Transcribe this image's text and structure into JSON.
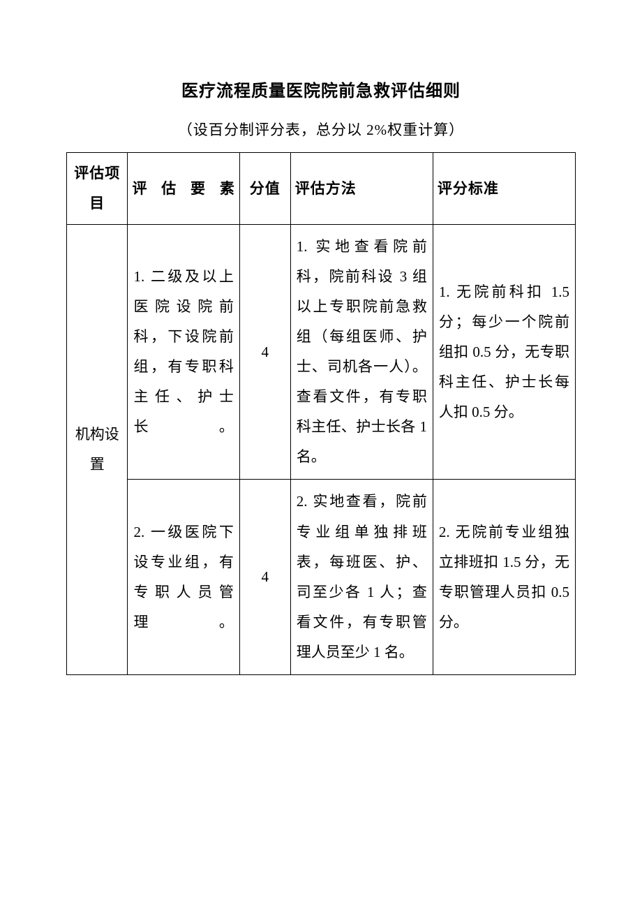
{
  "document": {
    "title": "医疗流程质量医院院前急救评估细则",
    "subtitle": "（设百分制评分表，总分以 2%权重计算）",
    "background_color": "#ffffff",
    "text_color": "#000000",
    "border_color": "#000000",
    "title_fontsize": 24,
    "body_fontsize": 21,
    "line_height": 2.05
  },
  "table": {
    "columns": [
      {
        "key": "category",
        "label": "评估项目",
        "width_pct": 12,
        "align": "center"
      },
      {
        "key": "element",
        "label": "评估要素",
        "width_pct": 22,
        "align": "justify"
      },
      {
        "key": "score",
        "label": "分值",
        "width_pct": 10,
        "align": "center"
      },
      {
        "key": "method",
        "label": "评估方法",
        "width_pct": 28,
        "align": "justify"
      },
      {
        "key": "standard",
        "label": "评分标准",
        "width_pct": 28,
        "align": "justify"
      }
    ],
    "category_cell": {
      "label": "机构设置",
      "rowspan": 2
    },
    "rows": [
      {
        "element": "1. 二级及以上医院设院前科，下设院前组，有专职科主任、护士长。",
        "score": "4",
        "method": "1. 实地查看院前科，院前科设 3 组以上专职院前急救组（每组医师、护士、司机各一人）。查看文件，有专职科主任、护士长各 1 名。",
        "standard": "1. 无院前科扣 1.5 分；每少一个院前组扣 0.5 分，无专职科主任、护士长每人扣 0.5 分。"
      },
      {
        "element": "2. 一级医院下设专业组，有专职人员管理。",
        "score": "4",
        "method": "2. 实地查看，院前专业组单独排班表，每班医、护、司至少各 1 人；查看文件，有专职管理人员至少 1 名。",
        "standard": "2. 无院前专业组独立排班扣 1.5 分，无专职管理人员扣 0.5 分。"
      }
    ]
  }
}
